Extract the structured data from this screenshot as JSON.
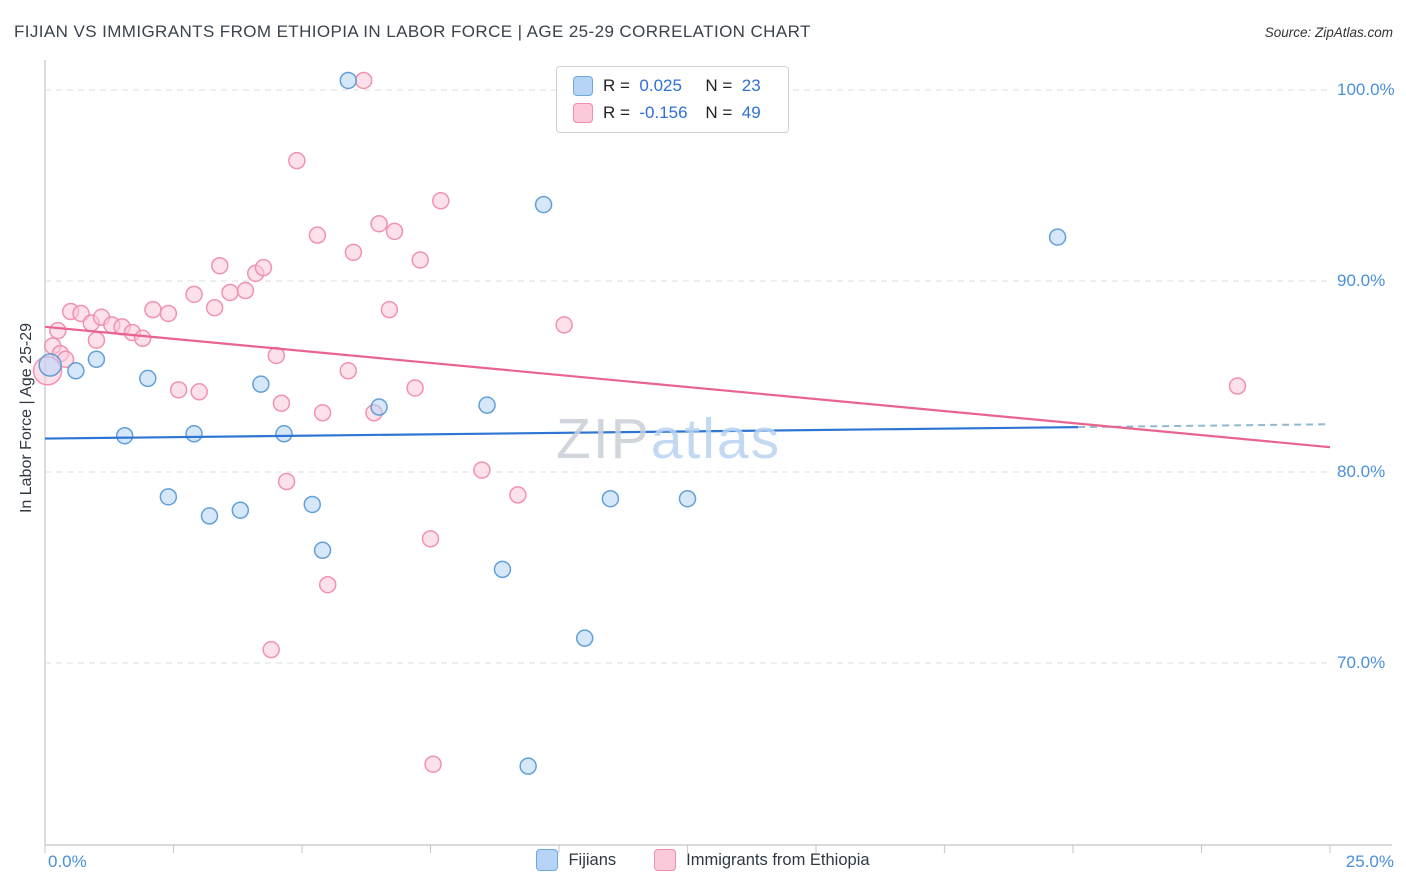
{
  "header": {
    "title": "FIJIAN VS IMMIGRANTS FROM ETHIOPIA IN LABOR FORCE | AGE 25-29 CORRELATION CHART",
    "source": "Source: ZipAtlas.com"
  },
  "watermark": {
    "part1": "ZIP",
    "part2": "atlas"
  },
  "axes": {
    "y_title": "In Labor Force | Age 25-29",
    "y_ticks": [
      "100.0%",
      "90.0%",
      "80.0%",
      "70.0%"
    ],
    "x_min_label": "0.0%",
    "x_max_label": "25.0%"
  },
  "stats_box": {
    "rows": [
      {
        "series": "Fijians",
        "r_label": "R =",
        "r_value": "0.025",
        "n_label": "N =",
        "n_value": "23"
      },
      {
        "series": "Immigrants from Ethiopia",
        "r_label": "R =",
        "r_value": "-0.156",
        "n_label": "N =",
        "n_value": "49"
      }
    ]
  },
  "legend": {
    "items": [
      {
        "label": "Fijians"
      },
      {
        "label": "Immigrants from Ethiopia"
      }
    ]
  },
  "colors": {
    "fijian_fill": "#b5d4f6",
    "fijian_stroke": "#5b9bd5",
    "fijian_line": "#2e75d4",
    "ethiopia_fill": "#fbc9d9",
    "ethiopia_stroke": "#f08cac",
    "ethiopia_line": "#e8638e",
    "dashed_extension": "#8fb9d0",
    "grid": "#dadee3",
    "axis": "#c9ced4",
    "tick_label_blue": "#4a90d9"
  },
  "chart_data": {
    "type": "scatter",
    "title": "FIJIAN VS IMMIGRANTS FROM ETHIOPIA IN LABOR FORCE | AGE 25-29 CORRELATION CHART",
    "xlabel": "",
    "ylabel": "In Labor Force | Age 25-29",
    "x_range_percent": [
      0,
      25
    ],
    "y_range_percent": [
      60.5,
      101.6
    ],
    "y_gridlines": [
      100,
      90,
      80,
      70
    ],
    "grid": "dashed-horizontal",
    "legend_position": "bottom-center",
    "series": [
      {
        "name": "Fijians",
        "R": 0.025,
        "N": 23,
        "points": [
          [
            0.1,
            85.6,
            11
          ],
          [
            0.6,
            85.3
          ],
          [
            1.0,
            85.9
          ],
          [
            1.55,
            81.9
          ],
          [
            2.0,
            84.9
          ],
          [
            2.4,
            78.7
          ],
          [
            2.9,
            82.0
          ],
          [
            3.2,
            77.7
          ],
          [
            3.8,
            78.0
          ],
          [
            4.2,
            84.6
          ],
          [
            4.65,
            82.0
          ],
          [
            5.2,
            78.3
          ],
          [
            5.4,
            75.9
          ],
          [
            5.9,
            100.5
          ],
          [
            6.5,
            83.4
          ],
          [
            8.6,
            83.5
          ],
          [
            8.9,
            74.9
          ],
          [
            9.4,
            64.6
          ],
          [
            9.7,
            94.0
          ],
          [
            10.5,
            71.3
          ],
          [
            11.0,
            78.6
          ],
          [
            12.5,
            78.6
          ],
          [
            19.7,
            92.3
          ]
        ]
      },
      {
        "name": "Immigrants from Ethiopia",
        "R": -0.156,
        "N": 49,
        "points": [
          [
            0.05,
            85.3,
            14
          ],
          [
            0.15,
            86.6
          ],
          [
            0.25,
            87.4
          ],
          [
            0.3,
            86.2
          ],
          [
            0.4,
            85.9
          ],
          [
            0.5,
            88.4
          ],
          [
            0.7,
            88.3
          ],
          [
            0.9,
            87.8
          ],
          [
            1.0,
            86.9
          ],
          [
            1.1,
            88.1
          ],
          [
            1.3,
            87.7
          ],
          [
            1.5,
            87.6
          ],
          [
            1.7,
            87.3
          ],
          [
            1.9,
            87.0
          ],
          [
            2.1,
            88.5
          ],
          [
            2.4,
            88.3
          ],
          [
            2.6,
            84.3
          ],
          [
            2.9,
            89.3
          ],
          [
            3.0,
            84.2
          ],
          [
            3.3,
            88.6
          ],
          [
            3.4,
            90.8
          ],
          [
            3.6,
            89.4
          ],
          [
            3.9,
            89.5
          ],
          [
            4.1,
            90.4
          ],
          [
            4.25,
            90.7
          ],
          [
            4.5,
            86.1
          ],
          [
            4.4,
            70.7
          ],
          [
            4.7,
            79.5
          ],
          [
            4.6,
            83.6
          ],
          [
            4.9,
            96.3
          ],
          [
            5.3,
            92.4
          ],
          [
            5.5,
            74.1
          ],
          [
            5.4,
            83.1
          ],
          [
            5.9,
            85.3
          ],
          [
            6.0,
            91.5
          ],
          [
            6.2,
            100.5
          ],
          [
            6.5,
            93.0
          ],
          [
            6.8,
            92.6
          ],
          [
            6.7,
            88.5
          ],
          [
            6.4,
            83.1
          ],
          [
            7.2,
            84.4
          ],
          [
            7.3,
            91.1
          ],
          [
            7.7,
            94.2
          ],
          [
            7.5,
            76.5
          ],
          [
            7.55,
            64.7
          ],
          [
            8.5,
            80.1
          ],
          [
            9.2,
            78.8
          ],
          [
            10.1,
            87.7
          ],
          [
            23.2,
            84.5
          ]
        ]
      }
    ],
    "trend_lines": [
      {
        "series": "Fijians",
        "x_start": 0,
        "y_start": 81.75,
        "x_end": 20.1,
        "y_end": 82.35,
        "dashed_extension": {
          "x_end": 25,
          "y_end": 82.5
        }
      },
      {
        "series": "Immigrants from Ethiopia",
        "x_start": 0,
        "y_start": 87.6,
        "x_end": 25,
        "y_end": 81.3
      }
    ]
  }
}
